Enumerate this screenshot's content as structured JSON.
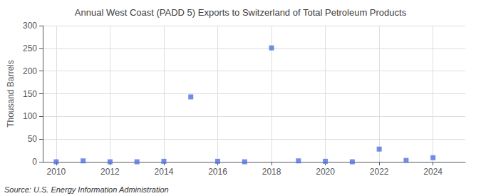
{
  "chart_data": {
    "type": "scatter",
    "title": "Annual West Coast (PADD 5) Exports to Switzerland of Total Petroleum Products",
    "ylabel": "Thousand Barrels",
    "annotations": [
      "Source: U.S. Energy Information Administration"
    ],
    "x": [
      2010,
      2011,
      2012,
      2013,
      2014,
      2015,
      2016,
      2017,
      2018,
      2019,
      2020,
      2021,
      2022,
      2023,
      2024
    ],
    "values": [
      0,
      2,
      0,
      0,
      1,
      143,
      1,
      0,
      251,
      2,
      1,
      0,
      28,
      3,
      9
    ],
    "marker": "square",
    "xlim": [
      2009.5,
      2025.2
    ],
    "xticks": [
      2010,
      2012,
      2014,
      2016,
      2018,
      2020,
      2022,
      2024
    ],
    "ylim": [
      0,
      300
    ],
    "yticks": [
      0,
      50,
      100,
      150,
      200,
      250,
      300
    ],
    "grid": true
  }
}
